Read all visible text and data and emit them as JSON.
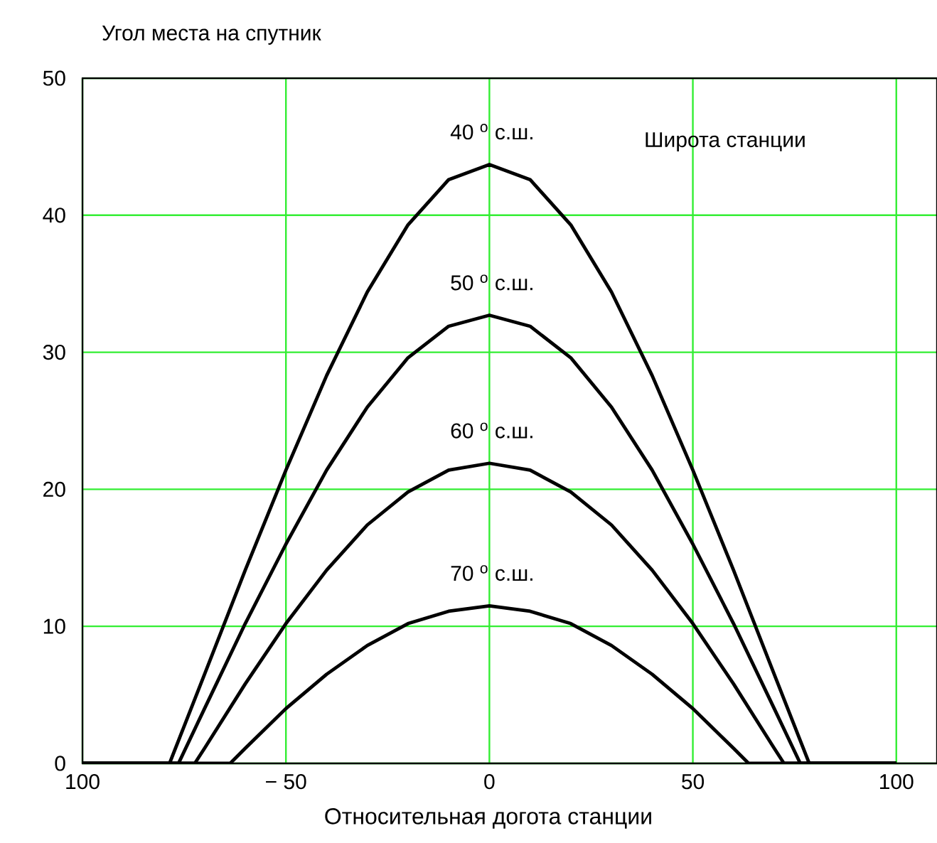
{
  "chart_data": {
    "type": "line",
    "xlabel": "Относительная догота станции",
    "ylabel": "Угол места на спутник",
    "legend_title": "Широта станции",
    "xlim": [
      -100,
      110
    ],
    "ylim": [
      0,
      50
    ],
    "xticks": [
      {
        "value": -100,
        "label": "100"
      },
      {
        "value": -50,
        "label": "− 50"
      },
      0,
      50,
      100
    ],
    "yticks": [
      0,
      10,
      20,
      30,
      40,
      50
    ],
    "grid": true,
    "series": [
      {
        "name": "40 $^{o}$ с.ш.",
        "color": "#000000",
        "x": [
          -100,
          -78.6,
          -70,
          -60,
          -50,
          -40,
          -30,
          -20,
          -10,
          0,
          10,
          20,
          30,
          40,
          50,
          60,
          70,
          78.6,
          100
        ],
        "values": [
          0,
          0,
          6.5,
          14.1,
          21.4,
          28.3,
          34.4,
          39.3,
          42.6,
          43.7,
          42.6,
          39.3,
          34.4,
          28.3,
          21.4,
          14.1,
          6.5,
          0,
          0
        ]
      },
      {
        "name": "50 $^{o}$ с.ш.",
        "color": "#000000",
        "x": [
          -100,
          -76.4,
          -70,
          -60,
          -50,
          -40,
          -30,
          -20,
          -10,
          0,
          10,
          20,
          30,
          40,
          50,
          60,
          70,
          76.4,
          100
        ],
        "values": [
          0,
          0,
          4.0,
          10.2,
          16.0,
          21.4,
          26.0,
          29.6,
          31.9,
          32.7,
          31.9,
          29.6,
          26.0,
          21.4,
          16.0,
          10.2,
          4.0,
          0,
          0
        ]
      },
      {
        "name": "60 $^{o}$ с.ш.",
        "color": "#000000",
        "x": [
          -100,
          -72.4,
          -70,
          -60,
          -50,
          -40,
          -30,
          -20,
          -10,
          0,
          10,
          20,
          30,
          40,
          50,
          60,
          70,
          72.4,
          100
        ],
        "values": [
          0,
          0,
          1.1,
          5.8,
          10.2,
          14.1,
          17.4,
          19.8,
          21.4,
          21.9,
          21.4,
          19.8,
          17.4,
          14.1,
          10.2,
          5.8,
          1.1,
          0,
          0
        ]
      },
      {
        "name": "70 $^{o}$ с.ш.",
        "color": "#000000",
        "x": [
          -100,
          -63.7,
          -60,
          -50,
          -40,
          -30,
          -20,
          -10,
          0,
          10,
          20,
          30,
          40,
          50,
          60,
          63.7,
          100
        ],
        "values": [
          0,
          0,
          1.1,
          4.0,
          6.5,
          8.6,
          10.2,
          11.1,
          11.5,
          11.1,
          10.2,
          8.6,
          6.5,
          4.0,
          1.1,
          0,
          0
        ]
      }
    ]
  }
}
